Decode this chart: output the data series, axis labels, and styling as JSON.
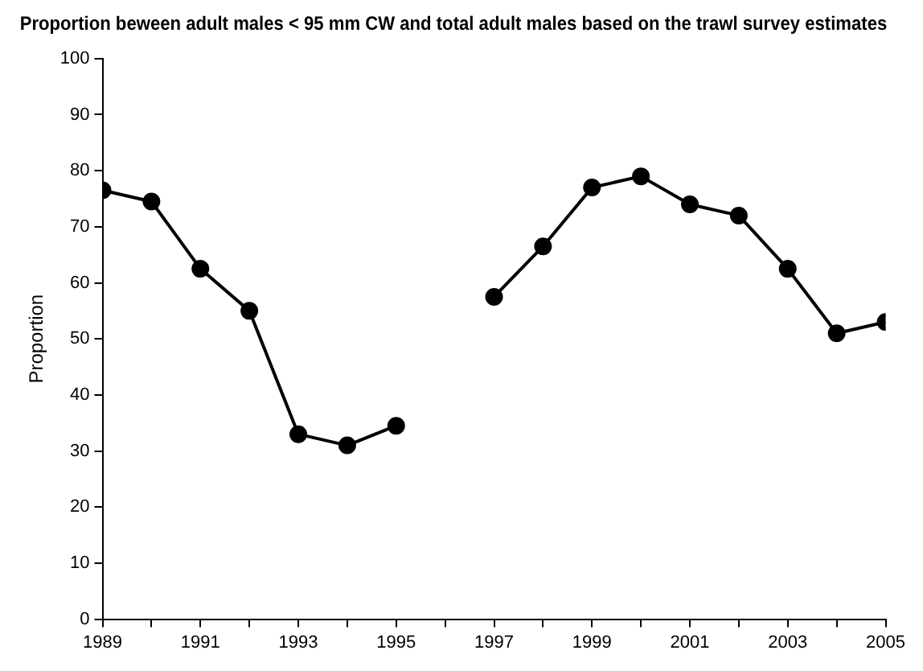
{
  "chart_data": {
    "type": "line",
    "title": "Proportion beween adult males < 95 mm CW and total adult males based on the trawl survey estimates",
    "ylabel": "Proportion",
    "x": [
      1989,
      1990,
      1991,
      1992,
      1993,
      1994,
      1995,
      1996,
      1997,
      1998,
      1999,
      2000,
      2001,
      2002,
      2003,
      2004,
      2005
    ],
    "series": [
      {
        "color": "#000000",
        "values": [
          76.5,
          74.5,
          62.5,
          55,
          33,
          31,
          34.5,
          null,
          57.5,
          66.5,
          77,
          79,
          74,
          72,
          62.5,
          51,
          53
        ]
      }
    ],
    "xlim": [
      1989,
      2005
    ],
    "xticks": [
      1989,
      {
        "value": 1990,
        "label": null
      },
      1991,
      {
        "value": 1992,
        "label": null
      },
      1993,
      {
        "value": 1994,
        "label": null
      },
      1995,
      {
        "value": 1996,
        "label": null
      },
      1997,
      {
        "value": 1998,
        "label": null
      },
      1999,
      {
        "value": 2000,
        "label": null
      },
      2001,
      {
        "value": 2002,
        "label": null
      },
      2003,
      {
        "value": 2004,
        "label": null
      },
      2005
    ],
    "ylim": [
      0,
      100
    ],
    "yticks": [
      0,
      10,
      20,
      30,
      40,
      50,
      60,
      70,
      80,
      90,
      100
    ],
    "grid": false,
    "legend": false,
    "marker": "circle",
    "line_style": "solid"
  }
}
